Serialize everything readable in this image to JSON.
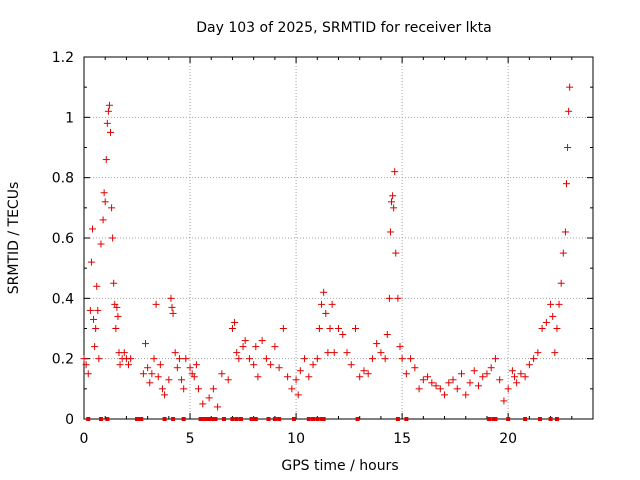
{
  "chart_data": {
    "type": "scatter",
    "title": "Day 103 of 2025, SRMTID for receiver lkta",
    "xlabel": "GPS time / hours",
    "ylabel": "SRMTID / TECUs",
    "xlim": [
      0,
      24
    ],
    "ylim": [
      0,
      1.2
    ],
    "xticks": [
      0,
      5,
      10,
      15,
      20
    ],
    "xtick_labels": [
      "0",
      "5",
      "10",
      "15",
      "20"
    ],
    "yticks": [
      0,
      0.2,
      0.4,
      0.6,
      0.8,
      1.0,
      1.2
    ],
    "ytick_labels": [
      "0",
      "0.2",
      "0.4",
      "0.6",
      "0.8",
      "1",
      "1.2"
    ],
    "grid": true,
    "marker": "+",
    "color": "#e00000",
    "series": [
      {
        "name": "SRMTID",
        "x": [
          0.0,
          0.1,
          0.2,
          0.3,
          0.35,
          0.4,
          0.45,
          0.5,
          0.55,
          0.6,
          0.65,
          0.7,
          0.8,
          0.9,
          0.95,
          1.0,
          1.05,
          1.1,
          1.15,
          1.2,
          1.25,
          1.3,
          1.35,
          1.4,
          1.45,
          1.5,
          1.55,
          1.6,
          1.65,
          1.7,
          1.8,
          1.9,
          2.0,
          2.1,
          2.2,
          2.8,
          2.9,
          3.0,
          3.1,
          3.2,
          3.3,
          3.4,
          3.5,
          3.6,
          3.7,
          3.8,
          4.0,
          4.1,
          4.15,
          4.2,
          4.3,
          4.4,
          4.5,
          4.6,
          4.7,
          4.8,
          5.0,
          5.1,
          5.2,
          5.3,
          5.4,
          5.6,
          5.9,
          6.1,
          6.3,
          6.5,
          6.8,
          7.0,
          7.1,
          7.2,
          7.3,
          7.5,
          7.6,
          7.8,
          8.0,
          8.1,
          8.2,
          8.4,
          8.6,
          8.8,
          9.0,
          9.2,
          9.4,
          9.6,
          9.8,
          10.0,
          10.1,
          10.2,
          10.4,
          10.6,
          10.8,
          11.0,
          11.1,
          11.2,
          11.3,
          11.4,
          11.5,
          11.6,
          11.7,
          11.8,
          12.0,
          12.2,
          12.4,
          12.6,
          12.8,
          13.0,
          13.2,
          13.4,
          13.6,
          13.8,
          14.0,
          14.2,
          14.3,
          14.4,
          14.45,
          14.5,
          14.55,
          14.6,
          14.65,
          14.7,
          14.8,
          14.9,
          15.0,
          15.2,
          15.4,
          15.6,
          15.8,
          16.0,
          16.2,
          16.4,
          16.6,
          16.8,
          17.0,
          17.2,
          17.4,
          17.6,
          17.8,
          18.0,
          18.2,
          18.4,
          18.6,
          18.8,
          19.0,
          19.2,
          19.4,
          19.6,
          19.8,
          20.0,
          20.2,
          20.3,
          20.4,
          20.6,
          20.8,
          21.0,
          21.2,
          21.4,
          21.6,
          21.8,
          22.0,
          22.1,
          22.2,
          22.3,
          22.4,
          22.5,
          22.6,
          22.7,
          22.75,
          22.8,
          22.85,
          22.9
        ],
        "y": [
          0.2,
          0.18,
          0.15,
          0.36,
          0.52,
          0.63,
          0.33,
          0.24,
          0.3,
          0.44,
          0.36,
          0.2,
          0.58,
          0.66,
          0.75,
          0.72,
          0.86,
          0.98,
          1.02,
          1.04,
          0.95,
          0.7,
          0.6,
          0.45,
          0.38,
          0.3,
          0.37,
          0.34,
          0.22,
          0.18,
          0.2,
          0.22,
          0.2,
          0.18,
          0.2,
          0.15,
          0.25,
          0.17,
          0.12,
          0.15,
          0.2,
          0.38,
          0.14,
          0.18,
          0.1,
          0.08,
          0.13,
          0.4,
          0.37,
          0.35,
          0.22,
          0.17,
          0.2,
          0.13,
          0.1,
          0.2,
          0.17,
          0.15,
          0.14,
          0.18,
          0.1,
          0.05,
          0.07,
          0.1,
          0.04,
          0.15,
          0.13,
          0.3,
          0.32,
          0.22,
          0.2,
          0.24,
          0.26,
          0.2,
          0.18,
          0.24,
          0.14,
          0.26,
          0.2,
          0.18,
          0.24,
          0.17,
          0.3,
          0.14,
          0.1,
          0.13,
          0.08,
          0.16,
          0.2,
          0.14,
          0.18,
          0.2,
          0.3,
          0.38,
          0.42,
          0.35,
          0.22,
          0.3,
          0.38,
          0.22,
          0.3,
          0.28,
          0.22,
          0.18,
          0.3,
          0.14,
          0.16,
          0.15,
          0.2,
          0.25,
          0.22,
          0.2,
          0.28,
          0.4,
          0.62,
          0.72,
          0.74,
          0.7,
          0.82,
          0.55,
          0.4,
          0.24,
          0.2,
          0.15,
          0.2,
          0.17,
          0.1,
          0.13,
          0.14,
          0.12,
          0.11,
          0.1,
          0.08,
          0.12,
          0.13,
          0.1,
          0.15,
          0.08,
          0.12,
          0.16,
          0.11,
          0.14,
          0.15,
          0.17,
          0.2,
          0.13,
          0.06,
          0.1,
          0.16,
          0.14,
          0.12,
          0.15,
          0.14,
          0.18,
          0.2,
          0.22,
          0.3,
          0.32,
          0.38,
          0.34,
          0.22,
          0.3,
          0.38,
          0.45,
          0.55,
          0.62,
          0.78,
          0.9,
          1.02,
          1.1
        ]
      }
    ],
    "zero_markers_x": [
      0.2,
      0.8,
      1.1,
      2.5,
      2.6,
      2.7,
      3.8,
      4.2,
      4.7,
      5.5,
      5.6,
      5.7,
      5.8,
      5.9,
      6.0,
      6.1,
      6.2,
      6.6,
      7.0,
      7.2,
      7.4,
      7.9,
      8.0,
      8.1,
      8.7,
      9.0,
      9.2,
      9.9,
      10.6,
      10.8,
      11.0,
      11.2,
      11.3,
      12.9,
      14.8,
      15.2,
      19.1,
      19.3,
      19.4,
      20.0,
      20.8,
      21.5,
      22.0,
      22.3
    ]
  }
}
